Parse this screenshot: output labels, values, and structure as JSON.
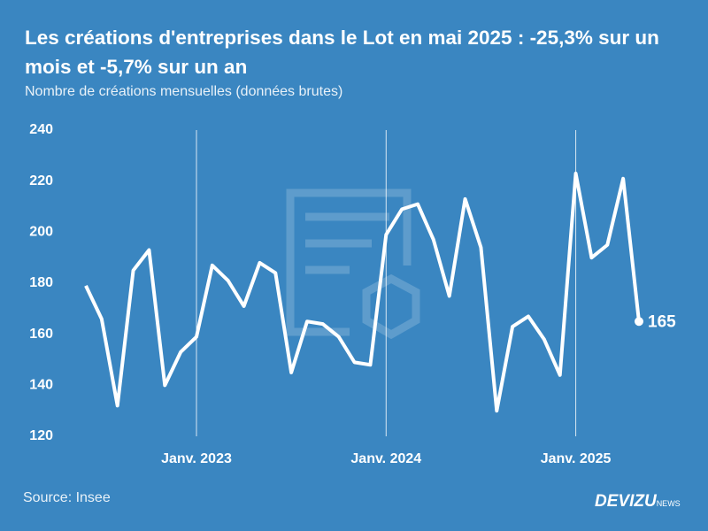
{
  "chart_data": {
    "type": "line",
    "title": "Les créations d'entreprises dans le Lot en mai 2025 : -25,3% sur un mois et -5,7% sur un an",
    "subtitle": "Nombre de créations mensuelles (données brutes)",
    "source": "Source: Insee",
    "brand": "DEVIZU",
    "brand_suffix": "NEWS",
    "categories": [
      null,
      null,
      null,
      null,
      null,
      null,
      null,
      "Janv. 2023",
      null,
      null,
      null,
      null,
      null,
      null,
      null,
      null,
      null,
      null,
      null,
      "Janv. 2024",
      null,
      null,
      null,
      null,
      null,
      null,
      null,
      null,
      null,
      null,
      null,
      "Janv. 2025",
      null,
      null,
      null,
      null
    ],
    "series": [
      {
        "color": "#ffffff",
        "values": [
          179,
          166,
          132,
          185,
          193,
          140,
          153,
          159,
          187,
          181,
          171,
          188,
          184,
          145,
          165,
          164,
          159,
          149,
          148,
          199,
          209,
          211,
          197,
          175,
          213,
          194,
          130,
          163,
          167,
          158,
          144,
          223,
          190,
          195,
          221,
          165
        ]
      }
    ],
    "ylim": [
      120,
      240
    ],
    "yticks": [
      120,
      140,
      160,
      180,
      200,
      220,
      240
    ]
  }
}
